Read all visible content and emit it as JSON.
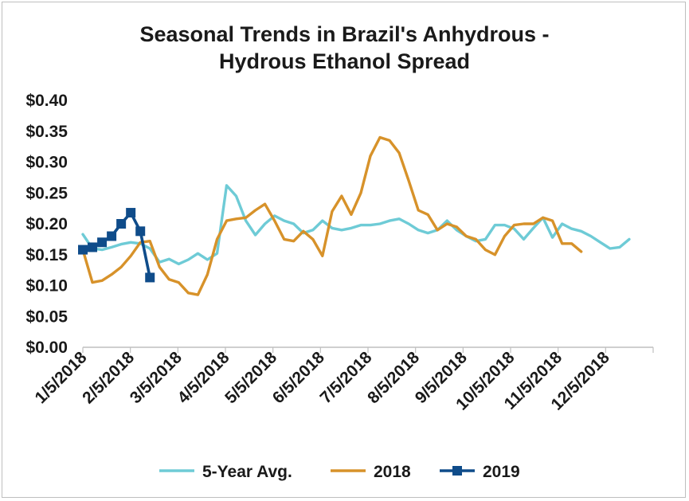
{
  "chart_data": {
    "type": "line",
    "title_lines": [
      "Seasonal Trends in Brazil's Anhydrous -",
      "Hydrous Ethanol Spread"
    ],
    "xlabel": "",
    "ylabel": "",
    "x_ticks": [
      "1/5/2018",
      "2/5/2018",
      "3/5/2018",
      "4/5/2018",
      "5/5/2018",
      "6/5/2018",
      "7/5/2018",
      "8/5/2018",
      "9/5/2018",
      "10/5/2018",
      "11/5/2018",
      "12/5/2018"
    ],
    "y_ticks": [
      "$0.40",
      "$0.35",
      "$0.30",
      "$0.25",
      "$0.20",
      "$0.15",
      "$0.10",
      "$0.05",
      "$0.00"
    ],
    "ylim": [
      0,
      0.4
    ],
    "xlim_weeks": [
      0,
      59.5
    ],
    "grid": false,
    "legend_position": "bottom",
    "series": [
      {
        "name": "5-Year Avg.",
        "color": "#6ecbd6",
        "marker": "none",
        "points": [
          [
            0,
            0.183
          ],
          [
            1,
            0.16
          ],
          [
            2,
            0.158
          ],
          [
            3,
            0.162
          ],
          [
            4,
            0.167
          ],
          [
            5,
            0.17
          ],
          [
            6,
            0.168
          ],
          [
            7,
            0.16
          ],
          [
            8,
            0.138
          ],
          [
            9,
            0.143
          ],
          [
            10,
            0.135
          ],
          [
            11,
            0.142
          ],
          [
            12,
            0.152
          ],
          [
            13,
            0.142
          ],
          [
            14,
            0.152
          ],
          [
            15,
            0.262
          ],
          [
            16,
            0.245
          ],
          [
            17,
            0.205
          ],
          [
            18,
            0.182
          ],
          [
            19,
            0.2
          ],
          [
            20,
            0.213
          ],
          [
            21,
            0.205
          ],
          [
            22,
            0.2
          ],
          [
            23,
            0.185
          ],
          [
            24,
            0.19
          ],
          [
            25,
            0.205
          ],
          [
            26,
            0.193
          ],
          [
            27,
            0.19
          ],
          [
            28,
            0.193
          ],
          [
            29,
            0.198
          ],
          [
            30,
            0.198
          ],
          [
            31,
            0.2
          ],
          [
            32,
            0.205
          ],
          [
            33,
            0.208
          ],
          [
            34,
            0.2
          ],
          [
            35,
            0.19
          ],
          [
            36,
            0.185
          ],
          [
            37,
            0.19
          ],
          [
            38,
            0.205
          ],
          [
            39,
            0.19
          ],
          [
            40,
            0.18
          ],
          [
            41,
            0.172
          ],
          [
            42,
            0.175
          ],
          [
            43,
            0.198
          ],
          [
            44,
            0.198
          ],
          [
            45,
            0.192
          ],
          [
            46,
            0.175
          ],
          [
            47,
            0.193
          ],
          [
            48,
            0.21
          ],
          [
            49,
            0.178
          ],
          [
            50,
            0.2
          ],
          [
            51,
            0.192
          ],
          [
            52,
            0.188
          ],
          [
            53,
            0.18
          ],
          [
            54,
            0.17
          ],
          [
            55,
            0.16
          ],
          [
            56,
            0.162
          ],
          [
            57,
            0.175
          ]
        ]
      },
      {
        "name": "2018",
        "color": "#d7922a",
        "marker": "none",
        "points": [
          [
            0,
            0.158
          ],
          [
            1,
            0.105
          ],
          [
            2,
            0.108
          ],
          [
            3,
            0.118
          ],
          [
            4,
            0.13
          ],
          [
            5,
            0.148
          ],
          [
            6,
            0.17
          ],
          [
            7,
            0.172
          ],
          [
            8,
            0.13
          ],
          [
            9,
            0.11
          ],
          [
            10,
            0.105
          ],
          [
            11,
            0.088
          ],
          [
            12,
            0.085
          ],
          [
            13,
            0.118
          ],
          [
            14,
            0.175
          ],
          [
            15,
            0.205
          ],
          [
            16,
            0.208
          ],
          [
            17,
            0.21
          ],
          [
            18,
            0.222
          ],
          [
            19,
            0.232
          ],
          [
            20,
            0.205
          ],
          [
            21,
            0.175
          ],
          [
            22,
            0.172
          ],
          [
            23,
            0.188
          ],
          [
            24,
            0.175
          ],
          [
            25,
            0.148
          ],
          [
            26,
            0.22
          ],
          [
            27,
            0.245
          ],
          [
            28,
            0.215
          ],
          [
            29,
            0.25
          ],
          [
            30,
            0.31
          ],
          [
            31,
            0.34
          ],
          [
            32,
            0.335
          ],
          [
            33,
            0.315
          ],
          [
            34,
            0.27
          ],
          [
            35,
            0.222
          ],
          [
            36,
            0.215
          ],
          [
            37,
            0.19
          ],
          [
            38,
            0.2
          ],
          [
            39,
            0.195
          ],
          [
            40,
            0.18
          ],
          [
            41,
            0.175
          ],
          [
            42,
            0.158
          ],
          [
            43,
            0.15
          ],
          [
            44,
            0.18
          ],
          [
            45,
            0.198
          ],
          [
            46,
            0.2
          ],
          [
            47,
            0.2
          ],
          [
            48,
            0.21
          ],
          [
            49,
            0.205
          ],
          [
            50,
            0.168
          ],
          [
            51,
            0.168
          ],
          [
            52,
            0.155
          ]
        ]
      },
      {
        "name": "2019",
        "color": "#0f4c8a",
        "marker": "square",
        "points": [
          [
            0,
            0.158
          ],
          [
            1,
            0.162
          ],
          [
            2,
            0.17
          ],
          [
            3,
            0.18
          ],
          [
            4,
            0.2
          ],
          [
            5,
            0.218
          ],
          [
            6,
            0.188
          ],
          [
            7,
            0.113
          ]
        ]
      }
    ]
  }
}
